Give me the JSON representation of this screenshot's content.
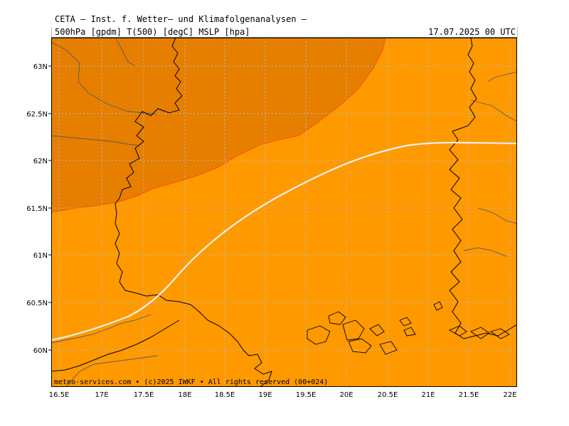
{
  "header": {
    "title": "CETA — Inst. f. Wetter— und Klimafolgenanalysen —",
    "params": "500hPa [gpdm] T(500) [degC] MSLP [hpa]",
    "valid_time": "17.07.2025 00 UTC"
  },
  "footer": {
    "credit": "meteo-services.com • (c)2025 IWKF • All rights reserved (00+024)"
  },
  "axes": {
    "lat_labels": [
      "63N",
      "62.5N",
      "62N",
      "61.5N",
      "61N",
      "60.5N",
      "60N"
    ],
    "lon_labels": [
      "16.5E",
      "17E",
      "17.5E",
      "18E",
      "18.5E",
      "19E",
      "19.5E",
      "20E",
      "20.5E",
      "21E",
      "21.5E",
      "22E"
    ]
  },
  "colors": {
    "warm_fill": "#ff9900",
    "cool_fill": "#e67e00",
    "isobar": "#f0f0f0",
    "boundary": "#ff4400",
    "coast": "#000000",
    "border": "#555555",
    "grid": "#bbbbbb"
  }
}
